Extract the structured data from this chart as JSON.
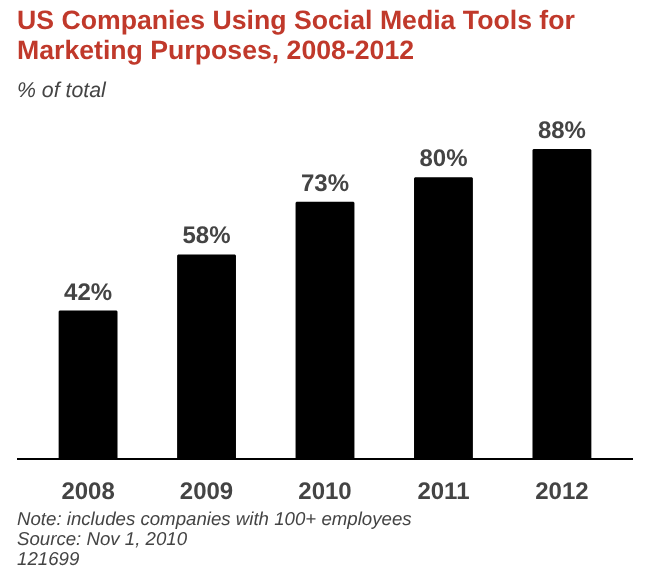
{
  "chart_data": {
    "type": "bar",
    "title": "US Companies Using Social Media Tools for Marketing Purposes, 2008-2012",
    "subtitle": "% of total",
    "categories": [
      "2008",
      "2009",
      "2010",
      "2011",
      "2012"
    ],
    "values": [
      42,
      58,
      73,
      80,
      88
    ],
    "value_labels": [
      "42%",
      "58%",
      "73%",
      "80%",
      "88%"
    ],
    "color": "#000000",
    "annotations": [
      "Note: includes companies with 100+ employees",
      "Source: Nov 1, 2010",
      "121699"
    ]
  }
}
